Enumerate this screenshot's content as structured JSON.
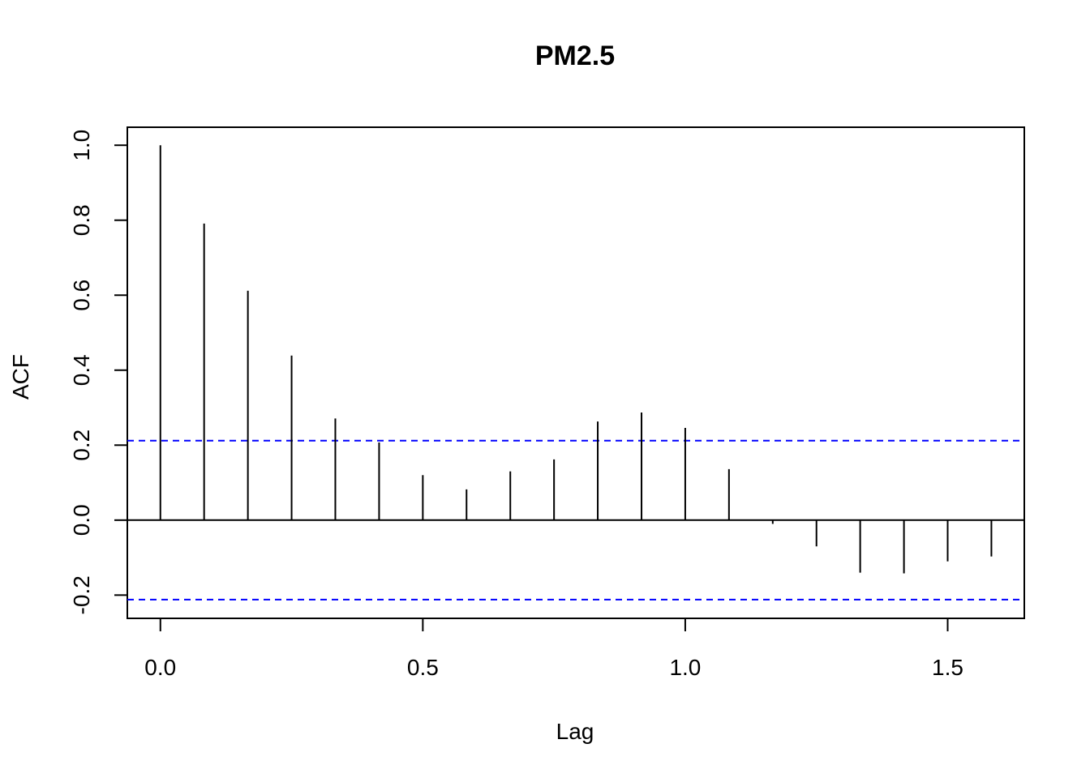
{
  "chart_data": {
    "type": "bar",
    "title": "PM2.5",
    "xlabel": "Lag",
    "ylabel": "ACF",
    "xlim": [
      -0.063,
      1.646
    ],
    "ylim": [
      -0.262,
      1.048
    ],
    "x_ticks": [
      "0.0",
      "0.5",
      "1.0",
      "1.5"
    ],
    "y_ticks": [
      "-0.2",
      "0.0",
      "0.2",
      "0.4",
      "0.6",
      "0.8",
      "1.0"
    ],
    "grid": false,
    "zero_line": true,
    "confidence_bounds": {
      "upper": 0.212,
      "lower": -0.212,
      "color": "#0000ff"
    },
    "series": [
      {
        "x": [
          0.0,
          0.0833,
          0.1667,
          0.25,
          0.3333,
          0.4167,
          0.5,
          0.5833,
          0.6667,
          0.75,
          0.8333,
          0.9167,
          1.0,
          1.0833,
          1.1667,
          1.25,
          1.3333,
          1.4167,
          1.5,
          1.5833
        ],
        "values": [
          1.0,
          0.791,
          0.612,
          0.439,
          0.271,
          0.207,
          0.12,
          0.082,
          0.13,
          0.162,
          0.263,
          0.287,
          0.246,
          0.136,
          -0.01,
          -0.07,
          -0.14,
          -0.142,
          -0.11,
          -0.097
        ]
      }
    ]
  }
}
